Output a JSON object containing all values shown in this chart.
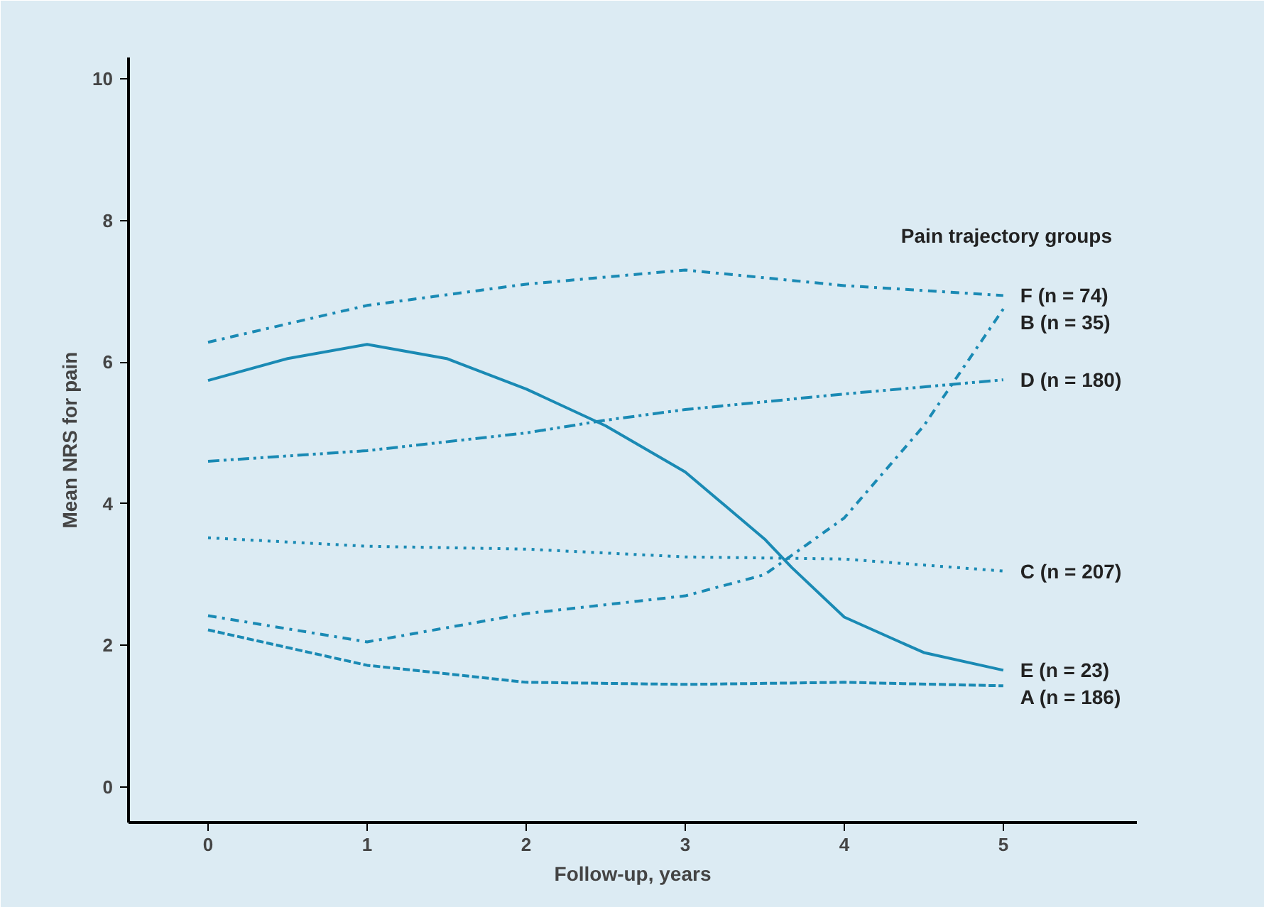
{
  "chart_data": {
    "type": "line",
    "xlabel": "Follow-up, years",
    "ylabel": "Mean NRS for pain",
    "legend_title": "Pain trajectory groups",
    "xlim": [
      -0.5,
      5.84
    ],
    "ylim": [
      -0.5,
      10.3
    ],
    "xticks": [
      0,
      1,
      2,
      3,
      4,
      5
    ],
    "yticks": [
      0,
      2,
      4,
      6,
      8,
      10
    ],
    "grid": false,
    "legend": false,
    "series": [
      {
        "name": "F (n = 74)",
        "color": "#1a8ab4",
        "line_style": "dashdot",
        "x": [
          0,
          1,
          2,
          3,
          4,
          5
        ],
        "values": [
          6.28,
          6.8,
          7.1,
          7.3,
          7.08,
          6.94
        ]
      },
      {
        "name": "B (n = 35)",
        "color": "#1a8ab4",
        "line_style": "dashdot",
        "x": [
          0,
          1,
          2,
          3,
          3.5,
          4,
          4.5,
          5
        ],
        "values": [
          2.42,
          2.05,
          2.45,
          2.7,
          3.0,
          3.8,
          5.1,
          6.75
        ]
      },
      {
        "name": "D (n = 180)",
        "color": "#1a8ab4",
        "line_style": "dashdotdot",
        "x": [
          0,
          1,
          2,
          2.5,
          3,
          4,
          5
        ],
        "values": [
          4.6,
          4.75,
          5.0,
          5.18,
          5.33,
          5.55,
          5.75
        ]
      },
      {
        "name": "C (n = 207)",
        "color": "#1a8ab4",
        "line_style": "dotted",
        "x": [
          0,
          1,
          2,
          3,
          4,
          5
        ],
        "values": [
          3.52,
          3.4,
          3.36,
          3.25,
          3.22,
          3.05
        ]
      },
      {
        "name": "E (n = 23)",
        "color": "#1a8ab4",
        "line_style": "solid",
        "x": [
          0,
          0.5,
          1,
          1.5,
          2,
          2.5,
          3,
          3.5,
          3.67,
          4,
          4.5,
          5
        ],
        "values": [
          5.74,
          6.05,
          6.25,
          6.05,
          5.62,
          5.1,
          4.45,
          3.5,
          3.1,
          2.4,
          1.9,
          1.65
        ]
      },
      {
        "name": "A (n = 186)",
        "color": "#1a8ab4",
        "line_style": "dashed",
        "x": [
          0,
          1,
          2,
          3,
          4,
          5
        ],
        "values": [
          2.22,
          1.72,
          1.48,
          1.45,
          1.48,
          1.43
        ]
      }
    ]
  }
}
